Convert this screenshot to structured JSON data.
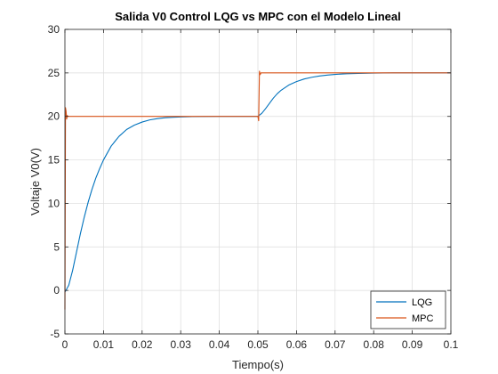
{
  "chart_data": {
    "type": "line",
    "title": "Salida V0 Control LQG vs MPC con el Modelo Lineal",
    "xlabel": "Tiempo(s)",
    "ylabel": "Voltaje V0(V)",
    "xlim": [
      0,
      0.1
    ],
    "ylim": [
      -5,
      30
    ],
    "xticks": [
      0,
      0.01,
      0.02,
      0.03,
      0.04,
      0.05,
      0.06,
      0.07,
      0.08,
      0.09,
      0.1
    ],
    "xtick_labels": [
      "0",
      "0.01",
      "0.02",
      "0.03",
      "0.04",
      "0.05",
      "0.06",
      "0.07",
      "0.08",
      "0.09",
      "0.1"
    ],
    "yticks": [
      -5,
      0,
      5,
      10,
      15,
      20,
      25,
      30
    ],
    "ytick_labels": [
      "-5",
      "0",
      "5",
      "10",
      "15",
      "20",
      "25",
      "30"
    ],
    "grid": true,
    "legend_position": "bottom-right",
    "series": [
      {
        "name": "LQG",
        "color": "#0072BD",
        "x": [
          0,
          0.001,
          0.002,
          0.003,
          0.004,
          0.005,
          0.006,
          0.007,
          0.008,
          0.009,
          0.01,
          0.012,
          0.014,
          0.016,
          0.018,
          0.02,
          0.022,
          0.024,
          0.026,
          0.028,
          0.03,
          0.033,
          0.036,
          0.04,
          0.045,
          0.05,
          0.051,
          0.052,
          0.053,
          0.054,
          0.055,
          0.056,
          0.058,
          0.06,
          0.062,
          0.064,
          0.066,
          0.068,
          0.07,
          0.073,
          0.076,
          0.08,
          0.085,
          0.09,
          0.095,
          0.1
        ],
        "y": [
          -0.2,
          0.6,
          2.3,
          4.4,
          6.5,
          8.4,
          10.1,
          11.6,
          12.9,
          14.0,
          15.0,
          16.6,
          17.7,
          18.5,
          19.0,
          19.35,
          19.6,
          19.75,
          19.85,
          19.9,
          19.94,
          19.97,
          19.99,
          20.0,
          20.0,
          20.0,
          20.35,
          20.9,
          21.5,
          22.1,
          22.6,
          23.0,
          23.6,
          24.0,
          24.3,
          24.5,
          24.65,
          24.75,
          24.83,
          24.9,
          24.94,
          24.98,
          25.0,
          25.0,
          25.0,
          25.0
        ]
      },
      {
        "name": "MPC",
        "color": "#D95319",
        "x": [
          0,
          0.00015,
          0.0003,
          0.00045,
          0.0006,
          0.0008,
          0.05,
          0.0502,
          0.0504,
          0.0506,
          0.0508,
          0.1
        ],
        "y": [
          -2.2,
          21.0,
          20.6,
          19.7,
          20.1,
          20.0,
          20.0,
          19.5,
          25.2,
          24.8,
          25.0,
          25.0
        ]
      }
    ]
  }
}
